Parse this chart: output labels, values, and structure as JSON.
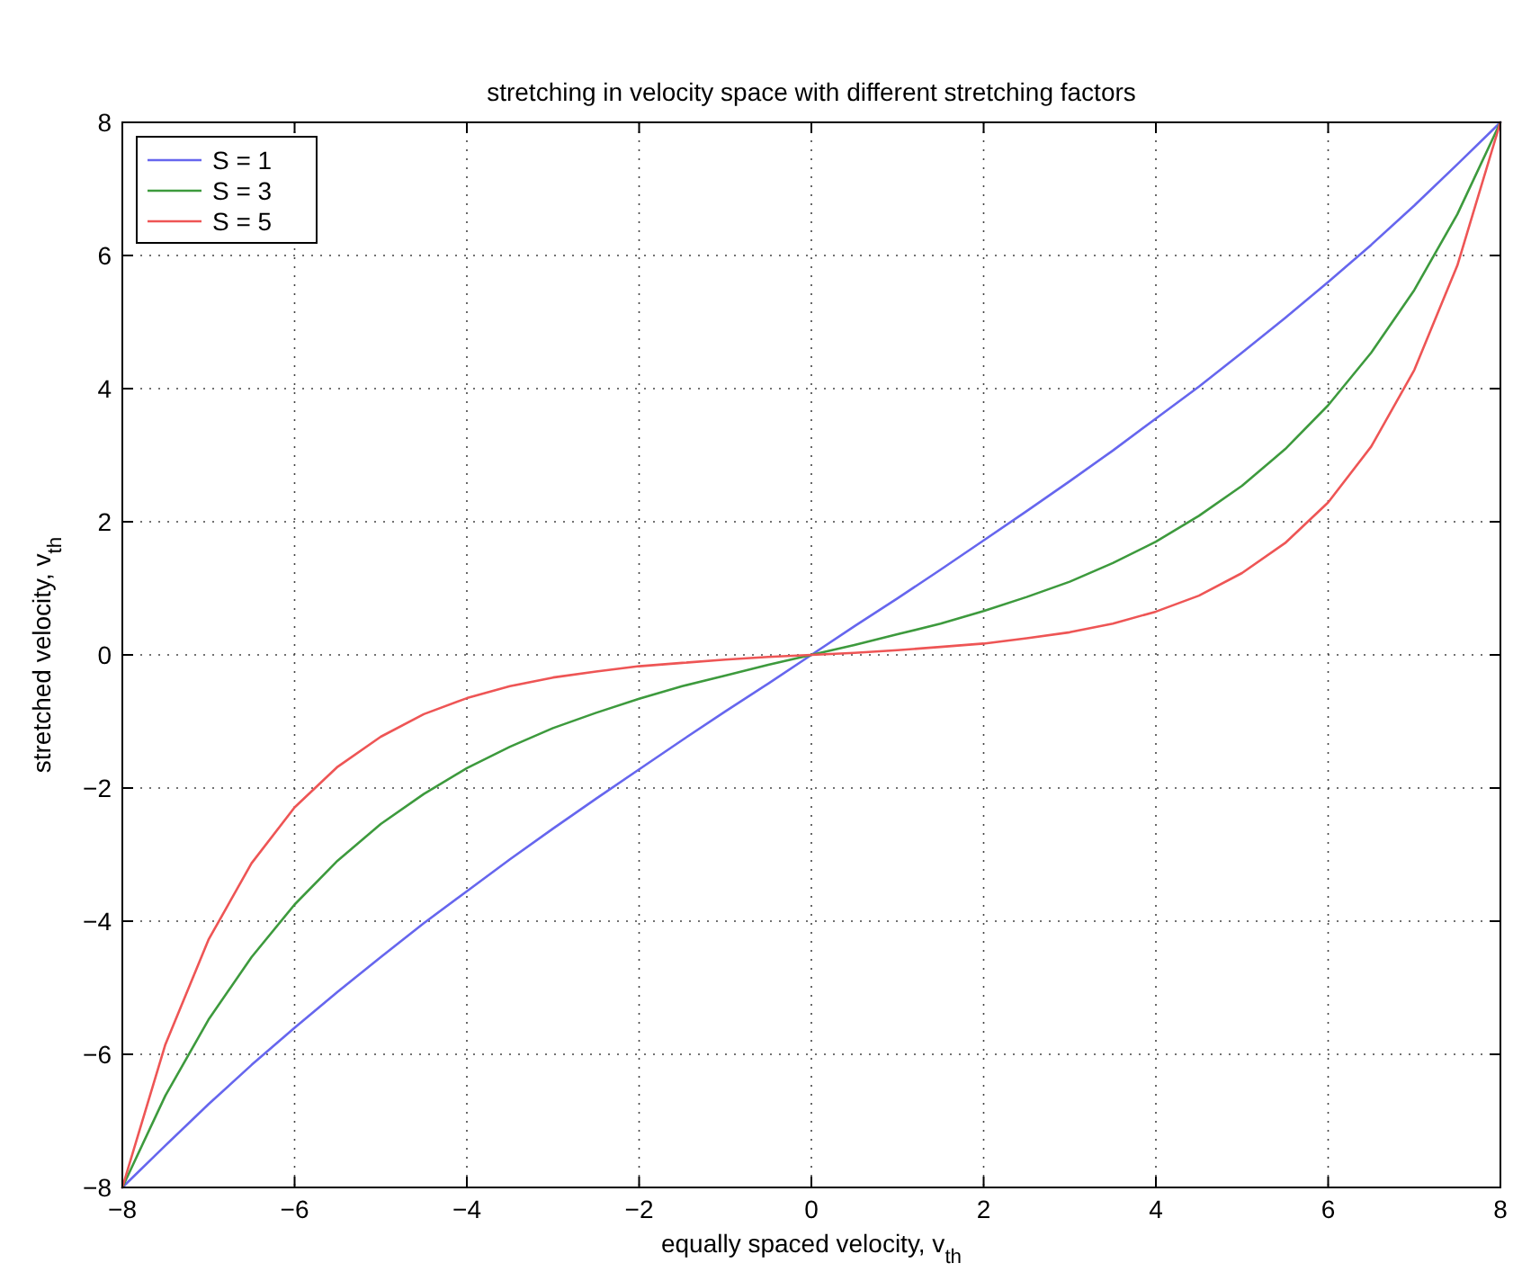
{
  "chart_data": {
    "type": "line",
    "title": "stretching in velocity space with different stretching factors",
    "xlabel": "equally spaced velocity, v$_{th}$",
    "ylabel": "stretched velocity, v$_{th}$",
    "x": [
      -8,
      -7.5,
      -7,
      -6.5,
      -6,
      -5.5,
      -5,
      -4.5,
      -4,
      -3.5,
      -3,
      -2.5,
      -2,
      -1.5,
      -1,
      -0.5,
      0,
      0.5,
      1,
      1.5,
      2,
      2.5,
      3,
      3.5,
      4,
      4.5,
      5,
      5.5,
      6,
      6.5,
      7,
      7.5,
      8
    ],
    "series": [
      {
        "name": "S = 1",
        "color": "#6666ee",
        "values": [
          -8,
          -7.37,
          -6.75,
          -6.16,
          -5.6,
          -5.06,
          -4.54,
          -4.03,
          -3.55,
          -3.07,
          -2.61,
          -2.16,
          -1.72,
          -1.28,
          -0.85,
          -0.43,
          0,
          0.43,
          0.85,
          1.28,
          1.72,
          2.16,
          2.61,
          3.07,
          3.55,
          4.03,
          4.54,
          5.06,
          5.6,
          6.16,
          6.75,
          7.37,
          8
        ]
      },
      {
        "name": "S = 3",
        "color": "#3d9a3d",
        "values": [
          -8,
          -6.62,
          -5.48,
          -4.54,
          -3.75,
          -3.09,
          -2.54,
          -2.09,
          -1.7,
          -1.38,
          -1.1,
          -0.87,
          -0.66,
          -0.47,
          -0.31,
          -0.15,
          0,
          0.15,
          0.31,
          0.47,
          0.66,
          0.87,
          1.1,
          1.38,
          1.7,
          2.09,
          2.54,
          3.09,
          3.75,
          4.54,
          5.48,
          6.62,
          8
        ]
      },
      {
        "name": "S = 5",
        "color": "#ee5555",
        "values": [
          -8,
          -5.85,
          -4.28,
          -3.13,
          -2.29,
          -1.68,
          -1.23,
          -0.89,
          -0.65,
          -0.47,
          -0.34,
          -0.25,
          -0.17,
          -0.12,
          -0.07,
          -0.03,
          0,
          0.03,
          0.07,
          0.12,
          0.17,
          0.25,
          0.34,
          0.47,
          0.65,
          0.89,
          1.23,
          1.68,
          2.29,
          3.13,
          4.28,
          5.85,
          8
        ]
      }
    ],
    "xlim": [
      -8,
      8
    ],
    "xticks": [
      -8,
      -6,
      -4,
      -2,
      0,
      2,
      4,
      6,
      8
    ],
    "ylim": [
      -8,
      8
    ],
    "yticks": [
      -8,
      -6,
      -4,
      -2,
      0,
      2,
      4,
      6,
      8
    ],
    "grid": true,
    "legend": "top left",
    "line_style": "solid",
    "marker": "none"
  }
}
